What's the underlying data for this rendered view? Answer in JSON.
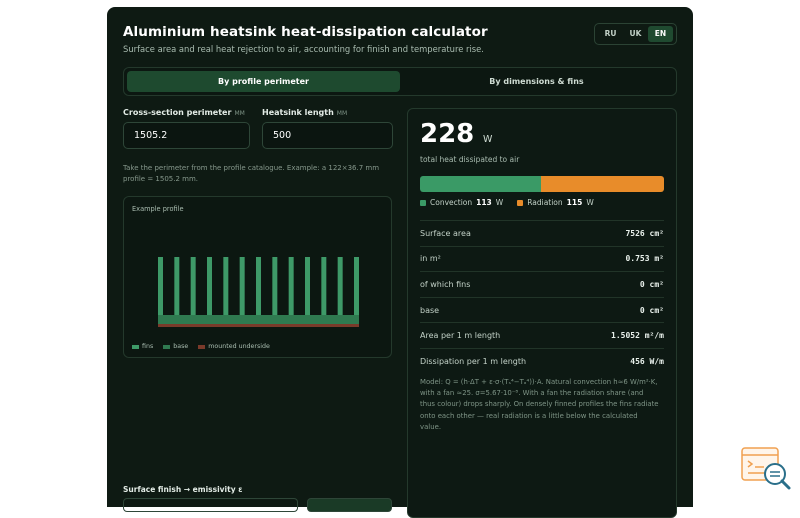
{
  "header": {
    "title": "Aluminium heatsink heat-dissipation calculator",
    "subtitle": "Surface area and real heat rejection to air, accounting for finish and temperature rise."
  },
  "languages": [
    {
      "code": "RU",
      "active": false
    },
    {
      "code": "UK",
      "active": false
    },
    {
      "code": "EN",
      "active": true
    }
  ],
  "tabs": [
    {
      "label": "By profile perimeter",
      "active": true
    },
    {
      "label": "By dimensions & fins",
      "active": false
    }
  ],
  "inputs": {
    "perimeter": {
      "label": "Cross-section perimeter",
      "unit": "MM",
      "value": "1505.2"
    },
    "length": {
      "label": "Heatsink length",
      "unit": "MM",
      "value": "500"
    }
  },
  "hint": "Take the perimeter from the profile catalogue. Example: a 122×36.7 mm profile = 1505.2 mm.",
  "profile": {
    "title": "Example profile",
    "fin_count": 13,
    "legend": {
      "fins": "fins",
      "base": "base",
      "mounted": "mounted underside"
    },
    "colors": {
      "fins": "#3e9a68",
      "base": "#2f7a50",
      "mounted": "#7a3a2a"
    }
  },
  "results": {
    "total_value": "228",
    "total_unit": "W",
    "total_caption": "total heat dissipated to air",
    "convection": {
      "label": "Convection",
      "value": "113",
      "unit": "W",
      "watts": 113,
      "color": "#3a9a66"
    },
    "radiation": {
      "label": "Radiation",
      "value": "115",
      "unit": "W",
      "watts": 115,
      "color": "#e88c2a"
    },
    "rows": [
      {
        "key": "Surface area",
        "value": "7526 cm²"
      },
      {
        "key": "in m²",
        "value": "0.753 m²"
      },
      {
        "key": "of which fins",
        "value": "0 cm²"
      },
      {
        "key": "base",
        "value": "0 cm²"
      },
      {
        "key": "Area per 1 m length",
        "value": "1.5052 m²/m"
      },
      {
        "key": "Dissipation per 1 m length",
        "value": "456 W/m"
      }
    ],
    "note": "Model: Q = (h·ΔT + ε·σ·(Tₛ⁴−Tₐ⁴))·A. Natural convection h≈6 W/m²·K, with a fan ≈25. σ=5.67·10⁻⁸. With a fan the radiation share (and thus colour) drops sharply. On densely finned profiles the fins radiate onto each other — real radiation is a little below the calculated value."
  },
  "finish": {
    "label": "Surface finish → emissivity ε"
  }
}
